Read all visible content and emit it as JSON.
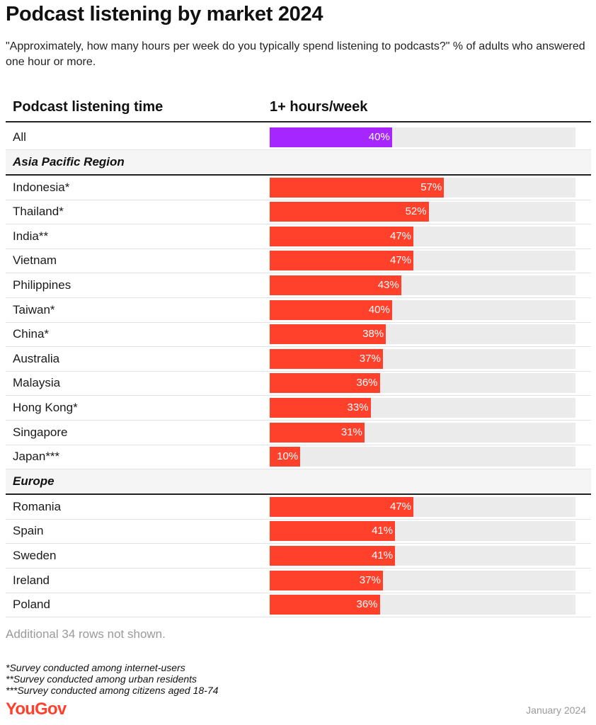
{
  "title": "Podcast listening by market 2024",
  "subtitle": "\"Approximately, how many hours per week do you typically spend listening to podcasts?\" % of adults who answered one hour or more.",
  "column_headers": {
    "label": "Podcast listening time",
    "value": "1+ hours/week"
  },
  "colors": {
    "all": "#a626ff",
    "markets": "#ff412c",
    "track": "#ebebeb",
    "brand": "#ff412c"
  },
  "chart_data": {
    "type": "bar",
    "orientation": "horizontal",
    "xlim": [
      0,
      100
    ],
    "unit": "%",
    "groups": [
      {
        "name": "",
        "rows": [
          {
            "label": "All",
            "value": 40,
            "display": "40%",
            "highlight": true
          }
        ]
      },
      {
        "name": "Asia Pacific Region",
        "rows": [
          {
            "label": "Indonesia*",
            "value": 57,
            "display": "57%"
          },
          {
            "label": "Thailand*",
            "value": 52,
            "display": "52%"
          },
          {
            "label": "India**",
            "value": 47,
            "display": "47%"
          },
          {
            "label": "Vietnam",
            "value": 47,
            "display": "47%"
          },
          {
            "label": "Philippines",
            "value": 43,
            "display": "43%"
          },
          {
            "label": "Taiwan*",
            "value": 40,
            "display": "40%"
          },
          {
            "label": "China*",
            "value": 38,
            "display": "38%"
          },
          {
            "label": "Australia",
            "value": 37,
            "display": "37%"
          },
          {
            "label": "Malaysia",
            "value": 36,
            "display": "36%"
          },
          {
            "label": "Hong Kong*",
            "value": 33,
            "display": "33%"
          },
          {
            "label": "Singapore",
            "value": 31,
            "display": "31%"
          },
          {
            "label": "Japan***",
            "value": 10,
            "display": "10%"
          }
        ]
      },
      {
        "name": "Europe",
        "rows": [
          {
            "label": "Romania",
            "value": 47,
            "display": "47%"
          },
          {
            "label": "Spain",
            "value": 41,
            "display": "41%"
          },
          {
            "label": "Sweden",
            "value": 41,
            "display": "41%"
          },
          {
            "label": "Ireland",
            "value": 37,
            "display": "37%"
          },
          {
            "label": "Poland",
            "value": 36,
            "display": "36%"
          }
        ]
      }
    ]
  },
  "more_rows_note": "Additional 34 rows not shown.",
  "footnotes": [
    "*Survey conducted among internet-users",
    "**Survey conducted among urban residents",
    "***Survey conducted among citizens aged 18-74"
  ],
  "brand": "YouGov",
  "date": "January 2024"
}
